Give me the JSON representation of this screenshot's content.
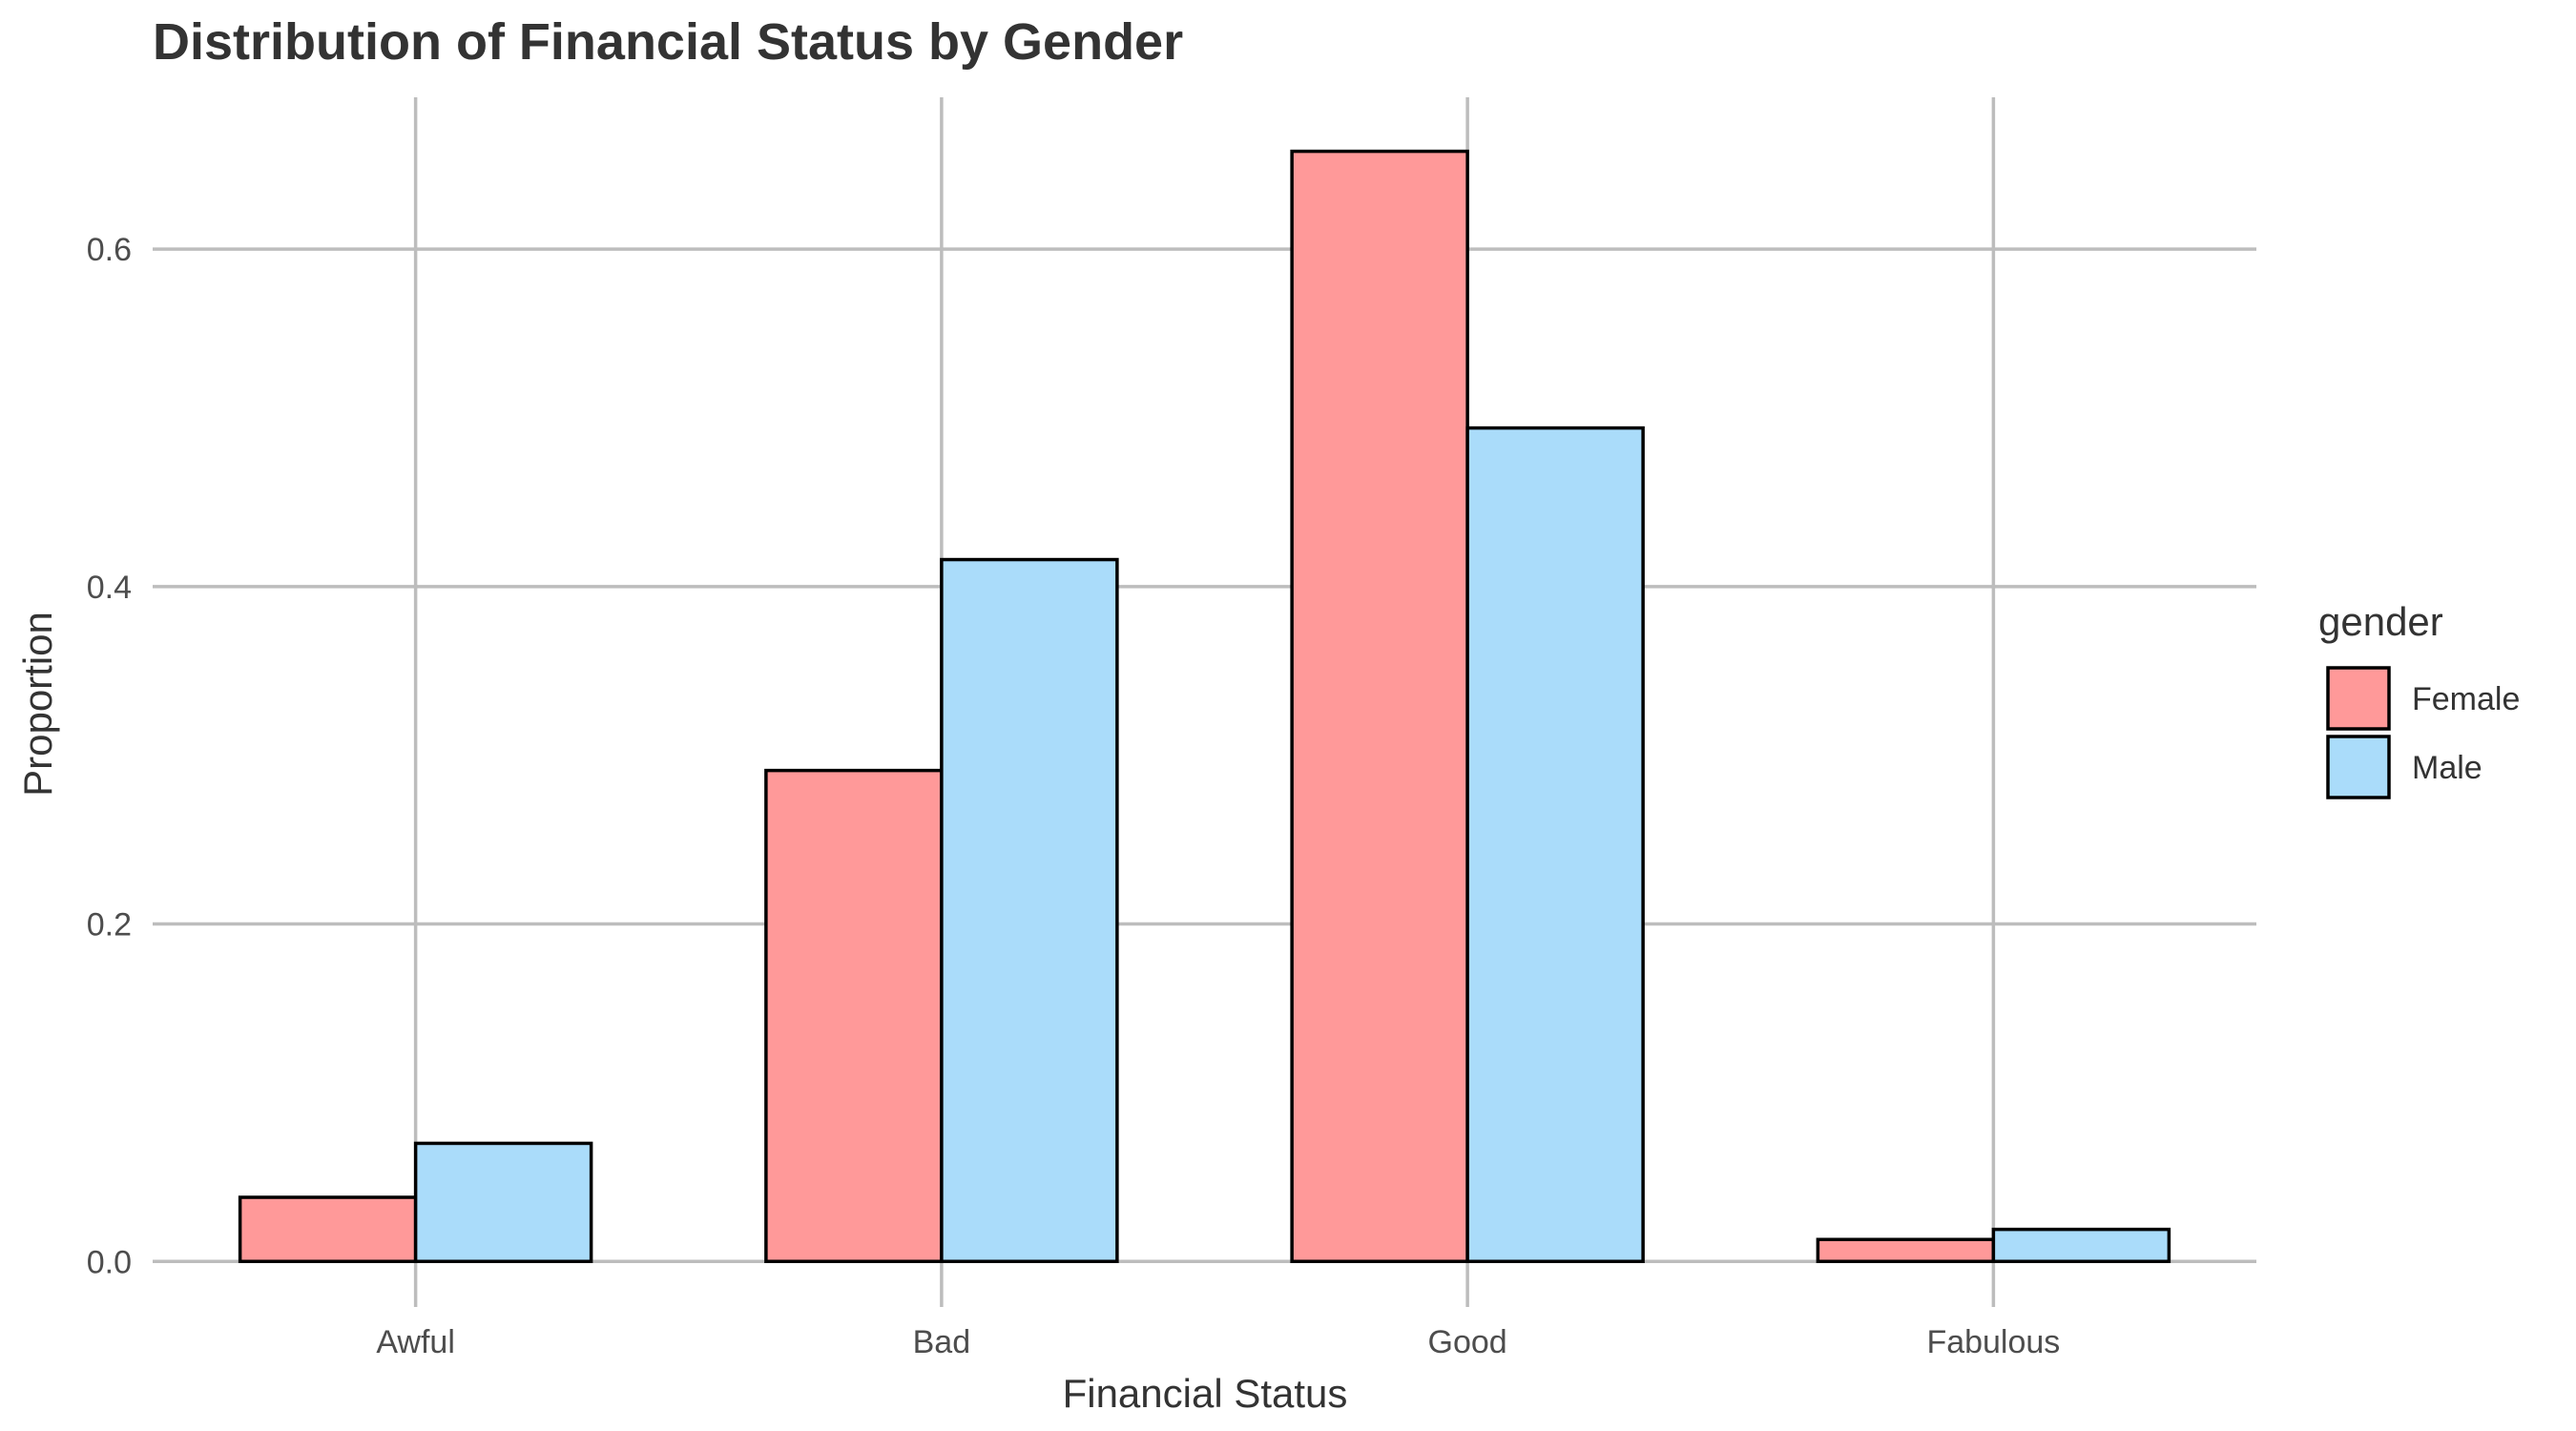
{
  "chart_data": {
    "type": "bar",
    "title": "Distribution of Financial Status by Gender",
    "xlabel": "Financial Status",
    "ylabel": "Proportion",
    "categories": [
      "Awful",
      "Bad",
      "Good",
      "Fabulous"
    ],
    "series": [
      {
        "name": "Female",
        "values": [
          0.038,
          0.291,
          0.658,
          0.013
        ],
        "color": "#ff9999"
      },
      {
        "name": "Male",
        "values": [
          0.07,
          0.416,
          0.494,
          0.019
        ],
        "color": "#aadcfa"
      }
    ],
    "ylim": [
      -0.027,
      0.69
    ],
    "y_ticks": [
      0.0,
      0.2,
      0.4,
      0.6
    ],
    "y_tick_labels": [
      "0.0",
      "0.2",
      "0.4",
      "0.6"
    ],
    "grid": true,
    "legend": {
      "title": "gender",
      "placement": "right"
    },
    "bar_border_color": "#000000",
    "grid_color": "#bdbdbd"
  }
}
